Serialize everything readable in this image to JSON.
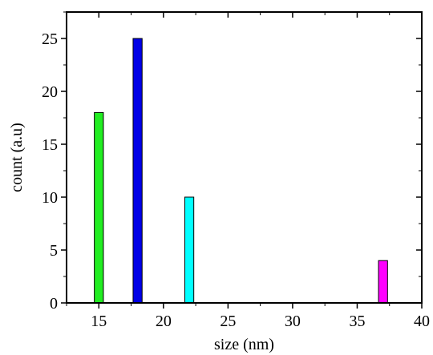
{
  "chart_data": {
    "type": "bar",
    "xlabel": "size (nm)",
    "ylabel": "count (a.u)",
    "xlim": [
      12.5,
      40
    ],
    "ylim": [
      0,
      27.5
    ],
    "x_ticks": [
      15,
      20,
      25,
      30,
      35,
      40
    ],
    "y_ticks": [
      0,
      5,
      10,
      15,
      20,
      25
    ],
    "grid": false,
    "legend": "none",
    "bars": [
      {
        "x": 15,
        "value": 18,
        "color": "#22ee22"
      },
      {
        "x": 18,
        "value": 25,
        "color": "#0000e6"
      },
      {
        "x": 22,
        "value": 10,
        "color": "#00ffff"
      },
      {
        "x": 37,
        "value": 4,
        "color": "#ff00ff"
      }
    ],
    "bar_width": 0.7
  }
}
